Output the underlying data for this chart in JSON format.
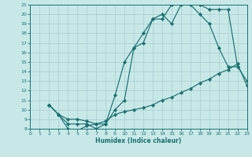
{
  "xlabel": "Humidex (Indice chaleur)",
  "bg_color": "#c8e8e8",
  "line_color": "#1a7070",
  "grid_color": "#a8cccc",
  "xlim": [
    0,
    23
  ],
  "ylim": [
    8,
    21
  ],
  "xticks": [
    0,
    1,
    2,
    3,
    4,
    5,
    6,
    7,
    8,
    9,
    10,
    11,
    12,
    13,
    14,
    15,
    16,
    17,
    18,
    19,
    20,
    21,
    22,
    23
  ],
  "yticks": [
    8,
    9,
    10,
    11,
    12,
    13,
    14,
    15,
    16,
    17,
    18,
    19,
    20,
    21
  ],
  "curve_top_x": [
    2,
    3,
    4,
    5,
    6,
    7,
    8,
    9,
    10,
    11,
    12,
    13,
    14,
    15,
    16,
    17,
    18,
    19,
    20,
    21,
    22,
    23
  ],
  "curve_top_y": [
    10.5,
    9.5,
    8.5,
    8.5,
    8.5,
    8.0,
    8.5,
    10.0,
    11.0,
    16.5,
    18.0,
    19.5,
    19.5,
    21.0,
    21.5,
    21.5,
    21.0,
    20.5,
    20.5,
    20.5,
    14.5,
    13.0
  ],
  "curve_mid_x": [
    2,
    3,
    4,
    5,
    6,
    7,
    8,
    9,
    10,
    11,
    12,
    13,
    14,
    15,
    16,
    17,
    18,
    19,
    20,
    21,
    22
  ],
  "curve_mid_y": [
    10.5,
    9.5,
    8.0,
    7.8,
    8.3,
    8.5,
    8.5,
    11.5,
    15.0,
    16.5,
    17.0,
    19.5,
    20.0,
    19.0,
    21.0,
    21.0,
    20.0,
    19.0,
    16.5,
    14.5,
    14.5
  ],
  "curve_bot_x": [
    2,
    3,
    4,
    5,
    6,
    7,
    8,
    9,
    10,
    11,
    12,
    13,
    14,
    15,
    16,
    17,
    18,
    19,
    20,
    21,
    22,
    23
  ],
  "curve_bot_y": [
    10.5,
    9.5,
    9.0,
    9.0,
    8.8,
    8.5,
    8.8,
    9.5,
    9.8,
    10.0,
    10.2,
    10.5,
    11.0,
    11.3,
    11.8,
    12.2,
    12.8,
    13.2,
    13.8,
    14.2,
    14.8,
    12.5
  ]
}
